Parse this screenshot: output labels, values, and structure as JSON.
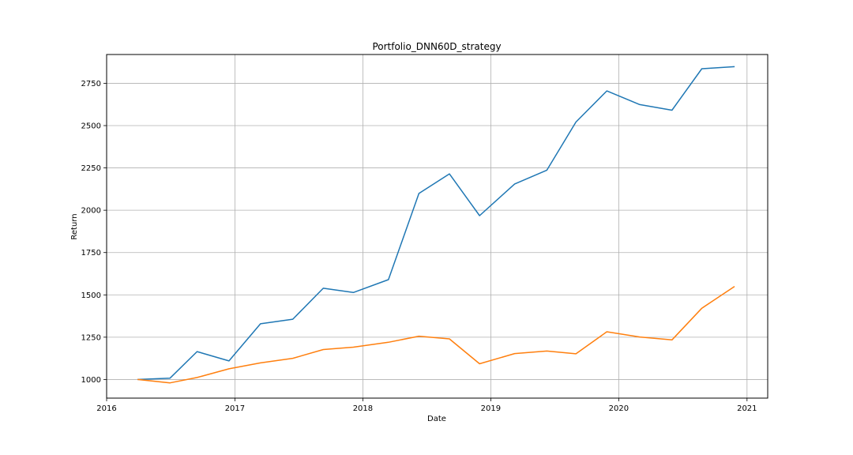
{
  "chart_data": {
    "type": "line",
    "title": "Portfolio_DNN60D_strategy",
    "xlabel": "Date",
    "ylabel": "Return",
    "xlim": [
      "2016-01-01",
      "2021-03-01"
    ],
    "ylim": [
      890,
      2920
    ],
    "x_ticks": [
      "2016",
      "2017",
      "2018",
      "2019",
      "2020",
      "2021"
    ],
    "y_ticks": [
      1000,
      1250,
      1500,
      1750,
      2000,
      2250,
      2500,
      2750
    ],
    "grid": true,
    "legend": "none",
    "x": [
      "2016-03-31",
      "2016-06-30",
      "2016-09-15",
      "2016-12-15",
      "2017-03-15",
      "2017-06-15",
      "2017-09-10",
      "2017-12-05",
      "2018-03-15",
      "2018-06-10",
      "2018-09-05",
      "2018-11-30",
      "2019-03-10",
      "2019-06-10",
      "2019-09-01",
      "2019-11-28",
      "2020-03-01",
      "2020-06-01",
      "2020-08-25",
      "2020-11-25"
    ],
    "series": [
      {
        "color": "#1f77b4",
        "values": [
          1000,
          1008,
          1165,
          1110,
          1329,
          1356,
          1539,
          1514,
          1590,
          2099,
          2215,
          1968,
          2155,
          2237,
          2521,
          2705,
          2624,
          2591,
          2836,
          2848
        ]
      },
      {
        "color": "#ff7f0e",
        "values": [
          1000,
          980,
          1012,
          1063,
          1098,
          1125,
          1177,
          1191,
          1220,
          1256,
          1240,
          1093,
          1153,
          1168,
          1152,
          1282,
          1251,
          1234,
          1421,
          1548
        ]
      }
    ]
  }
}
